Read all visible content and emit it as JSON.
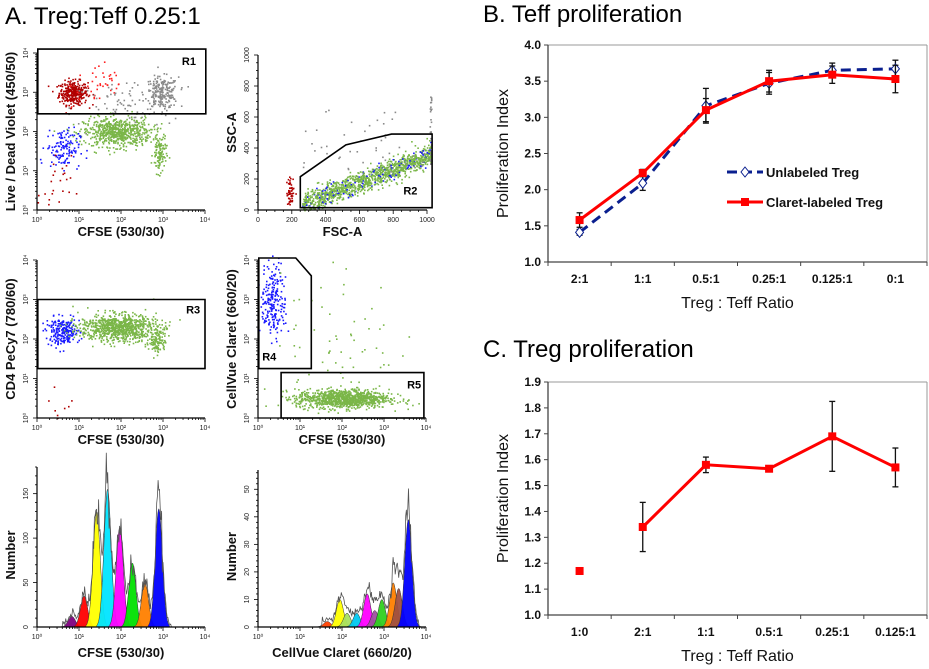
{
  "panels": {
    "a_title": "A. Treg:Teff 0.25:1",
    "b_title": "B. Teff proliferation",
    "c_title": "C. Treg proliferation"
  },
  "chart_data": [
    {
      "id": "flow1",
      "type": "scatter",
      "xlabel": "CFSE (530/30)",
      "ylabel": "Live / Dead Violet (450/50)",
      "xscale": "log",
      "yscale": "log",
      "xlim": [
        1,
        10000
      ],
      "ylim": [
        1,
        10000
      ],
      "xticks": [
        "10⁰",
        "10¹",
        "10²",
        "10³",
        "10⁴"
      ],
      "yticks": [
        "10⁰",
        "10¹",
        "10²",
        "10³",
        "10⁴"
      ],
      "population_colors": {
        "dead": "#b00000",
        "dead_gray": "#8a8a8a",
        "teff": "#7ab648",
        "treg": "#1a1aff"
      },
      "gates": [
        {
          "label": "R1",
          "polygon_log10": [
            [
              0.02,
              2.45
            ],
            [
              4.02,
              2.45
            ],
            [
              4.02,
              4.1
            ],
            [
              0.02,
              4.1
            ]
          ]
        }
      ]
    },
    {
      "id": "flow2",
      "type": "scatter",
      "xlabel": "FSC-A",
      "ylabel": "SSC-A",
      "xscale": "linear",
      "yscale": "linear",
      "xlim": [
        0,
        1000
      ],
      "ylim": [
        0,
        1000
      ],
      "xticks": [
        "0",
        "200",
        "400",
        "600",
        "800",
        "1000"
      ],
      "yticks": [
        "0",
        "200",
        "400",
        "600",
        "800",
        "1000"
      ],
      "gates": [
        {
          "label": "R2",
          "polygon": [
            [
              250,
              15
            ],
            [
              250,
              215
            ],
            [
              520,
              420
            ],
            [
              790,
              490
            ],
            [
              1030,
              490
            ],
            [
              1030,
              15
            ]
          ]
        }
      ]
    },
    {
      "id": "flow3",
      "type": "scatter",
      "xlabel": "CFSE (530/30)",
      "ylabel": "CD4 PeCy7 (780/60)",
      "xscale": "log",
      "yscale": "log",
      "xlim": [
        1,
        10000
      ],
      "ylim": [
        1,
        10000
      ],
      "xticks": [
        "10⁰",
        "10¹",
        "10²",
        "10³",
        "10⁴"
      ],
      "yticks": [
        "10⁰",
        "10¹",
        "10²",
        "10³",
        "10⁴"
      ],
      "gates": [
        {
          "label": "R3",
          "polygon_log10": [
            [
              0.02,
              1.25
            ],
            [
              4.0,
              1.25
            ],
            [
              4.0,
              3.0
            ],
            [
              0.02,
              3.0
            ]
          ]
        }
      ]
    },
    {
      "id": "flow4",
      "type": "scatter",
      "xlabel": "CFSE (530/30)",
      "ylabel": "CellVue Claret (660/20)",
      "xscale": "log",
      "yscale": "log",
      "xlim": [
        1,
        10000
      ],
      "ylim": [
        1,
        10000
      ],
      "xticks": [
        "10⁰",
        "10¹",
        "10²",
        "10³",
        "10⁴"
      ],
      "yticks": [
        "10⁰",
        "10¹",
        "10²",
        "10³",
        "10⁴"
      ],
      "gates": [
        {
          "label": "R4",
          "polygon_log10": [
            [
              0.02,
              1.25
            ],
            [
              0.02,
              4.05
            ],
            [
              0.9,
              4.05
            ],
            [
              1.27,
              3.6
            ],
            [
              1.27,
              1.25
            ]
          ]
        },
        {
          "label": "R5",
          "polygon_log10": [
            [
              0.55,
              0.0
            ],
            [
              3.95,
              0.0
            ],
            [
              3.95,
              1.15
            ],
            [
              0.55,
              1.15
            ]
          ]
        }
      ]
    },
    {
      "id": "hist1",
      "type": "area",
      "xlabel": "CFSE (530/30)",
      "ylabel": "Number",
      "xscale": "log",
      "xlim": [
        1,
        10000
      ],
      "ylim": [
        0,
        180
      ],
      "xticks": [
        "10⁰",
        "10¹",
        "10²",
        "10³",
        "10⁴"
      ],
      "yticks": [
        "0",
        "50",
        "100",
        "150"
      ],
      "ytick_values": [
        0,
        50,
        100,
        150
      ],
      "peaks": [
        {
          "center_log10": 0.83,
          "count": 12,
          "color": "#800080"
        },
        {
          "center_log10": 1.12,
          "count": 35,
          "color": "#ff0000"
        },
        {
          "center_log10": 1.42,
          "count": 130,
          "color": "#ffff00"
        },
        {
          "center_log10": 1.68,
          "count": 155,
          "color": "#00e5ff"
        },
        {
          "center_log10": 1.97,
          "count": 112,
          "color": "#ff00ff"
        },
        {
          "center_log10": 2.27,
          "count": 72,
          "color": "#00e000"
        },
        {
          "center_log10": 2.57,
          "count": 50,
          "color": "#ff8000"
        },
        {
          "center_log10": 2.9,
          "count": 133,
          "color": "#0000ff"
        }
      ]
    },
    {
      "id": "hist2",
      "type": "area",
      "xlabel": "CellVue Claret (660/20)",
      "ylabel": "Number",
      "xscale": "log",
      "xlim": [
        1,
        10000
      ],
      "ylim": [
        0,
        57
      ],
      "xticks": [
        "10⁰",
        "10¹",
        "10²",
        "10³",
        "10⁴"
      ],
      "yticks": [
        "0",
        "10",
        "20",
        "30",
        "40",
        "50"
      ],
      "ytick_values": [
        0,
        10,
        20,
        30,
        40,
        50
      ],
      "peaks": [
        {
          "center_log10": 1.65,
          "count": 2,
          "color": "#ff4000"
        },
        {
          "center_log10": 1.95,
          "count": 10,
          "color": "#ffff00"
        },
        {
          "center_log10": 2.12,
          "count": 5,
          "color": "#a8e060"
        },
        {
          "center_log10": 2.35,
          "count": 5,
          "color": "#00c8f0"
        },
        {
          "center_log10": 2.6,
          "count": 12,
          "color": "#ff00ff"
        },
        {
          "center_log10": 2.78,
          "count": 6,
          "color": "#a050a0"
        },
        {
          "center_log10": 2.95,
          "count": 10,
          "color": "#30d020"
        },
        {
          "center_log10": 3.22,
          "count": 16,
          "color": "#ff8000"
        },
        {
          "center_log10": 3.35,
          "count": 14,
          "color": "#a05040"
        },
        {
          "center_log10": 3.58,
          "count": 39,
          "color": "#0000ff"
        }
      ]
    },
    {
      "id": "teff",
      "type": "line",
      "title": "B. Teff proliferation",
      "xlabel": "Treg : Teff Ratio",
      "ylabel": "Proliferation Index",
      "categories": [
        "2:1",
        "1:1",
        "0.5:1",
        "0.25:1",
        "0.125:1",
        "0:1"
      ],
      "ylim": [
        1.0,
        4.0
      ],
      "yticks": [
        "1.0",
        "1.5",
        "2.0",
        "2.5",
        "3.0",
        "3.5",
        "4.0"
      ],
      "ytick_values": [
        1.0,
        1.5,
        2.0,
        2.5,
        3.0,
        3.5,
        4.0
      ],
      "legend_position": "right",
      "series": [
        {
          "name": "Unlabeled Treg",
          "color": "#0a1f8f",
          "style": "dashed",
          "marker": "open-diamond",
          "values": [
            1.41,
            2.09,
            3.16,
            3.47,
            3.65,
            3.67
          ],
          "errors": [
            0.04,
            0.1,
            0.24,
            0.15,
            0.1,
            0.12
          ]
        },
        {
          "name": "Claret-labeled Treg",
          "color": "#ff0000",
          "style": "solid",
          "marker": "filled-square",
          "values": [
            1.58,
            2.23,
            3.1,
            3.5,
            3.59,
            3.53
          ],
          "errors": [
            0.1,
            0.05,
            0.16,
            0.15,
            0.12,
            0.19
          ]
        }
      ]
    },
    {
      "id": "treg",
      "type": "line",
      "title": "C. Treg proliferation",
      "xlabel": "Treg : Teff Ratio",
      "ylabel": "Proliferation Index",
      "categories": [
        "1:0",
        "2:1",
        "1:1",
        "0.5:1",
        "0.25:1",
        "0.125:1"
      ],
      "ylim": [
        1.0,
        1.9
      ],
      "yticks": [
        "1.0",
        "1.1",
        "1.2",
        "1.3",
        "1.4",
        "1.5",
        "1.6",
        "1.7",
        "1.8",
        "1.9"
      ],
      "ytick_values": [
        1.0,
        1.1,
        1.2,
        1.3,
        1.4,
        1.5,
        1.6,
        1.7,
        1.8,
        1.9
      ],
      "series": [
        {
          "color": "#ff0000",
          "style": "solid",
          "marker": "filled-square",
          "values": [
            1.17,
            1.34,
            1.58,
            1.565,
            1.69,
            1.57
          ],
          "errors": [
            0,
            0.095,
            0.03,
            0.005,
            0.135,
            0.075
          ],
          "connected_from_index": 1
        }
      ]
    }
  ]
}
